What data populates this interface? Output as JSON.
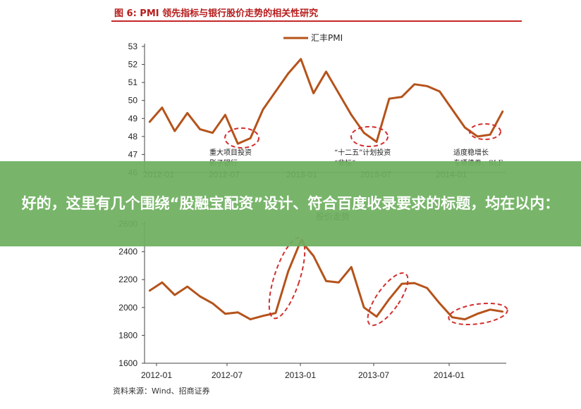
{
  "figure_title": "图  6:  PMI 领先指标与银行股价走势的相关性研究",
  "source": "资料来源：Wind、招商证券",
  "overlay_text": "好的，这里有几个围绕“股融宝配资”设计、符合百度收录要求的标题，均在以内：",
  "colors": {
    "line": "#b5531b",
    "highlight_ellipse": "#d32f2f",
    "title": "#b71c1c",
    "overlay": "#6eaf5f"
  },
  "chart_data": [
    {
      "type": "line",
      "title": "",
      "series": [
        {
          "name": "汇丰PMI",
          "values": [
            48.8,
            49.6,
            48.3,
            49.3,
            48.4,
            48.2,
            49.2,
            47.6,
            47.9,
            49.5,
            50.5,
            51.5,
            52.3,
            50.4,
            51.6,
            50.4,
            49.2,
            48.2,
            47.7,
            50.1,
            50.2,
            50.9,
            50.8,
            50.5,
            49.5,
            48.5,
            48.0,
            48.1,
            49.4
          ]
        }
      ],
      "x_ticks": [
        "2012-01",
        "2012-07",
        "2013-01",
        "2013-07",
        "2014-01"
      ],
      "ylim": [
        46,
        53
      ],
      "yticks": [
        46,
        47,
        48,
        49,
        50,
        51,
        52,
        53
      ],
      "annotations": [
        {
          "text": "重大项目投资\n影子银行"
        },
        {
          "text": "“十二五”计划投资\n“非标”"
        },
        {
          "text": "适度稳增长\n专项债券、SLF"
        }
      ]
    },
    {
      "type": "line",
      "title": "股价走势",
      "series": [
        {
          "name": "",
          "values": [
            2120,
            2180,
            2090,
            2150,
            2080,
            2030,
            1955,
            1965,
            1915,
            1940,
            1960,
            2260,
            2480,
            2370,
            2190,
            2180,
            2290,
            2000,
            1935,
            2060,
            2170,
            2175,
            2140,
            2030,
            1930,
            1915,
            1955,
            1985,
            1970
          ]
        }
      ],
      "x_ticks": [
        "2012-01",
        "2012-07",
        "2013-01",
        "2013-07",
        "2014-01"
      ],
      "ylim": [
        1600,
        2600
      ],
      "yticks": [
        1600,
        1800,
        2000,
        2200,
        2400,
        2600
      ],
      "grid": false,
      "legend": "top"
    }
  ]
}
